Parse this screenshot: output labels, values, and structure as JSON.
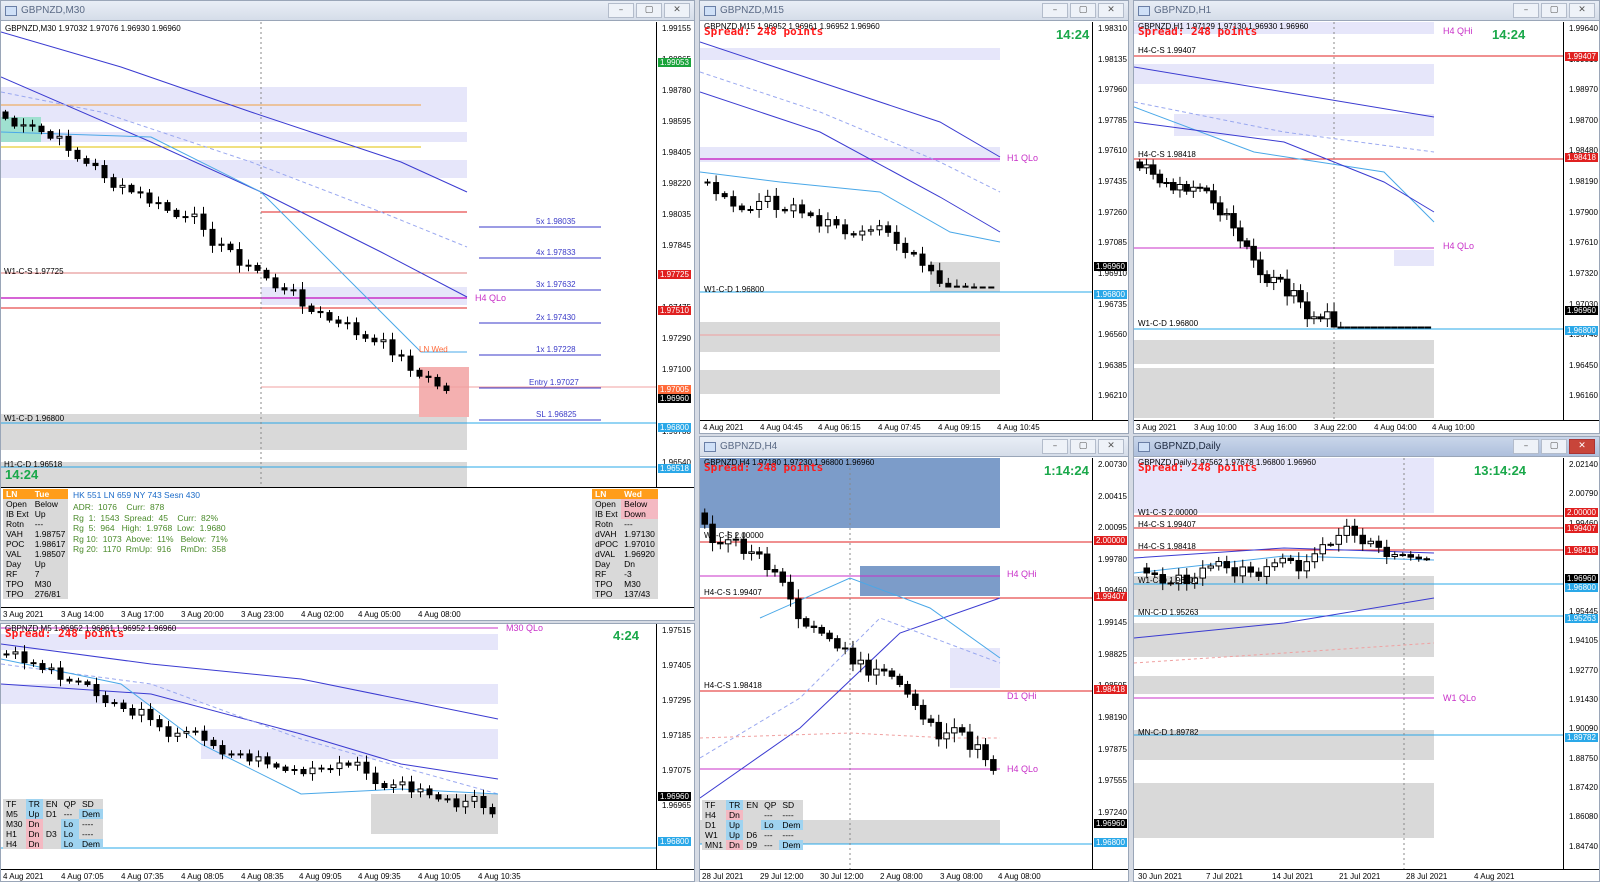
{
  "windows": {
    "m30": {
      "title": "GBPNZD,M30",
      "symbol_line": "GBPNZD,M30  1.97032 1.97076 1.96930 1.96960",
      "timer": "14:24",
      "price_labels": [
        "1.99155",
        "1.98965",
        "1.98780",
        "1.98595",
        "1.98405",
        "1.98220",
        "1.98035",
        "1.97845",
        "1.97660",
        "1.97475",
        "1.97290",
        "1.97100",
        "1.96915",
        "1.96730",
        "1.96540"
      ],
      "price_tags": [
        {
          "text": "1.99053",
          "color": "#19a33a"
        },
        {
          "text": "1.97725",
          "color": "#e02020"
        },
        {
          "text": "1.97510",
          "color": "#e02020"
        },
        {
          "text": "1.97005",
          "color": "#ff6a3a"
        },
        {
          "text": "1.96960",
          "color": "#000000"
        },
        {
          "text": "1.96800",
          "color": "#2aa8e8"
        },
        {
          "text": "1.96518",
          "color": "#2aa8e8"
        }
      ],
      "time_labels": [
        "3 Aug 2021",
        "3 Aug 14:00",
        "3 Aug 17:00",
        "3 Aug 20:00",
        "3 Aug 23:00",
        "4 Aug 02:00",
        "4 Aug 05:00",
        "4 Aug 08:00"
      ],
      "levels": {
        "w1cs": "W1-C-S 1.97725",
        "w1cd": "W1-C-D 1.96800",
        "h1cd": "H1-C-D 1.96518",
        "h4qlo": "H4 QLo",
        "lnwed": "LN Wed"
      },
      "targets": [
        "5x  1.98035",
        "4x  1.97833",
        "3x  1.97632",
        "2x  1.97430",
        "1x  1.97228",
        "Entry  1.97027",
        "SL  1.96825"
      ],
      "info": {
        "ln_label": "LN",
        "ln_day": "Tue",
        "rows": [
          [
            "Open",
            "Below"
          ],
          [
            "IB Ext",
            "Up"
          ],
          [
            "Rotn",
            "---"
          ],
          [
            "VAH",
            "1.98757"
          ],
          [
            "POC",
            "1.98617"
          ],
          [
            "VAL",
            "1.98507"
          ],
          [
            "Day",
            "Up"
          ],
          [
            "RF",
            "7"
          ],
          [
            "TPO",
            "M30"
          ],
          [
            "TPO",
            "276/81"
          ]
        ],
        "mid_line1": "HK 551  LN 659  NY 743  Sesn 430",
        "mid_rows": [
          "ADR:  1076    Curr:  878",
          "Rg  1:  1543  Spread:  45    Curr:  82%",
          "Rg  5:  964   High:  1.9768  Low:  1.9680",
          "Rg 10:  1073  Above:  11%   Below:  71%",
          "Rg 20:  1170  RmUp:  916    RmDn:  358"
        ],
        "right_label": "LN",
        "right_day": "Wed",
        "right_rows": [
          [
            "Open",
            "Below"
          ],
          [
            "IB Ext",
            "Down"
          ],
          [
            "Rotn",
            "---"
          ],
          [
            "dVAH",
            "1.97130"
          ],
          [
            "dPOC",
            "1.97010"
          ],
          [
            "dVAL",
            "1.96920"
          ],
          [
            "Day",
            "Dn"
          ],
          [
            "RF",
            "-3"
          ],
          [
            "TPO",
            "M30"
          ],
          [
            "TPO",
            "137/43"
          ]
        ]
      }
    },
    "m15": {
      "title": "GBPNZD,M15",
      "symbol_line": "GBPNZD,M15  1.96952 1.96961 1.96952 1.96960",
      "spread": "Spread: 248 points",
      "timer": "14:24",
      "price_labels": [
        "1.98310",
        "1.98135",
        "1.97960",
        "1.97785",
        "1.97610",
        "1.97435",
        "1.97260",
        "1.97085",
        "1.96910",
        "1.96735",
        "1.96560",
        "1.96385",
        "1.96210"
      ],
      "price_tags": [
        {
          "text": "1.96960",
          "color": "#000000"
        },
        {
          "text": "1.96800",
          "color": "#2aa8e8"
        }
      ],
      "time_labels": [
        "4 Aug 2021",
        "4 Aug 04:45",
        "4 Aug 06:15",
        "4 Aug 07:45",
        "4 Aug 09:15",
        "4 Aug 10:45"
      ],
      "levels": {
        "h1qlo": "H1 QLo",
        "w1cd": "W1-C-D 1.96800"
      }
    },
    "h1": {
      "title": "GBPNZD,H1",
      "symbol_line": "GBPNZD,H1  1.97129 1.97130 1.96930 1.96960",
      "spread": "Spread: 248 points",
      "timer": "14:24",
      "price_labels": [
        "1.99640",
        "1.99310",
        "1.98970",
        "1.98700",
        "1.98480",
        "1.98190",
        "1.97900",
        "1.97610",
        "1.97320",
        "1.97030",
        "1.96740",
        "1.96450",
        "1.96160"
      ],
      "price_tags": [
        {
          "text": "1.99407",
          "color": "#e02020"
        },
        {
          "text": "1.98418",
          "color": "#e02020"
        },
        {
          "text": "1.96960",
          "color": "#000000"
        },
        {
          "text": "1.96800",
          "color": "#2aa8e8"
        }
      ],
      "time_labels": [
        "3 Aug 2021",
        "3 Aug 10:00",
        "3 Aug 16:00",
        "3 Aug 22:00",
        "4 Aug 04:00",
        "4 Aug 10:00"
      ],
      "levels": {
        "h4qhi": "H4 QHi",
        "h4cs": "H4-C-S 1.99407",
        "h4cs2": "H4-C-S 1.98418",
        "h4qlo": "H4 QLo",
        "w1cd": "W1-C-D 1.96800"
      }
    },
    "m5": {
      "symbol_line": "GBPNZD,M5  1.96952 1.96961 1.96952 1.96960",
      "spread": "Spread: 248 points",
      "timer": "4:24",
      "m30qlo": "M30 QLo",
      "price_labels": [
        "1.97515",
        "1.97405",
        "1.97295",
        "1.97185",
        "1.97075",
        "1.96965",
        "1.96855"
      ],
      "price_tags": [
        {
          "text": "1.96960",
          "color": "#000000"
        },
        {
          "text": "1.96800",
          "color": "#2aa8e8"
        }
      ],
      "time_labels": [
        "4 Aug 2021",
        "4 Aug 07:05",
        "4 Aug 07:35",
        "4 Aug 08:05",
        "4 Aug 08:35",
        "4 Aug 09:05",
        "4 Aug 09:35",
        "4 Aug 10:05",
        "4 Aug 10:35"
      ],
      "tf_table": {
        "headers": [
          "TF",
          "TR",
          "EN",
          "QP",
          "SD"
        ],
        "rows": [
          [
            "M5",
            "Up",
            "D1",
            "---",
            "Dem"
          ],
          [
            "M30",
            "Dn",
            "",
            "Lo",
            "----"
          ],
          [
            "H1",
            "Dn",
            "D3",
            "Lo",
            "----"
          ],
          [
            "H4",
            "Dn",
            "",
            "Lo",
            "Dem"
          ]
        ]
      }
    },
    "h4": {
      "title": "GBPNZD,H4",
      "symbol_line": "GBPNZD,H4  1.97180 1.97230 1.96800 1.96960",
      "spread": "Spread: 248 points",
      "timer": "1:14:24",
      "price_labels": [
        "2.00730",
        "2.00415",
        "2.00095",
        "1.99780",
        "1.99460",
        "1.99145",
        "1.98825",
        "1.98505",
        "1.98190",
        "1.97875",
        "1.97555",
        "1.97240",
        "1.96920"
      ],
      "price_tags": [
        {
          "text": "2.00000",
          "color": "#e02020"
        },
        {
          "text": "1.99407",
          "color": "#e02020"
        },
        {
          "text": "1.98418",
          "color": "#e02020"
        },
        {
          "text": "1.96960",
          "color": "#000000"
        },
        {
          "text": "1.96800",
          "color": "#2aa8e8"
        }
      ],
      "time_labels": [
        "28 Jul 2021",
        "29 Jul 12:00",
        "30 Jul 12:00",
        "2 Aug 08:00",
        "3 Aug 08:00",
        "4 Aug 08:00"
      ],
      "levels": {
        "w1cs": "W1-C-S 2.00000",
        "h4cs": "H4-C-S 1.99407",
        "h4cs2": "H4-C-S 1.98418",
        "h4qhi": "H4 QHi",
        "d1qhi": "D1 QHi",
        "h4qlo": "H4 QLo"
      },
      "tf_table": {
        "headers": [
          "TF",
          "TR",
          "EN",
          "QP",
          "SD"
        ],
        "rows": [
          [
            "H4",
            "Dn",
            "",
            "---",
            "----"
          ],
          [
            "D1",
            "Up",
            "",
            "Lo",
            "Dem"
          ],
          [
            "W1",
            "Up",
            "D6",
            "---",
            "----"
          ],
          [
            "MN1",
            "Dn",
            "D9",
            "---",
            "Dem"
          ]
        ]
      }
    },
    "daily": {
      "title": "GBPNZD,Daily",
      "symbol_line": "GBPNZD,Daily  1.97562 1.97678 1.96800 1.96960",
      "spread": "Spread: 248 points",
      "timer": "13:14:24",
      "price_labels": [
        "2.02140",
        "2.00790",
        "1.99460",
        "1.98120",
        "1.96780",
        "1.95445",
        "1.94105",
        "1.92770",
        "1.91430",
        "1.90090",
        "1.88750",
        "1.87420",
        "1.86080",
        "1.84740"
      ],
      "price_tags": [
        {
          "text": "2.00000",
          "color": "#e02020"
        },
        {
          "text": "1.99407",
          "color": "#e02020"
        },
        {
          "text": "1.98418",
          "color": "#e02020"
        },
        {
          "text": "1.96960",
          "color": "#000000"
        },
        {
          "text": "1.96800",
          "color": "#2aa8e8"
        },
        {
          "text": "1.95263",
          "color": "#2aa8e8"
        },
        {
          "text": "1.89782",
          "color": "#2aa8e8"
        }
      ],
      "time_labels": [
        "30 Jun 2021",
        "7 Jul 2021",
        "14 Jul 2021",
        "21 Jul 2021",
        "28 Jul 2021",
        "4 Aug 2021"
      ],
      "levels": {
        "w1cs": "W1-C-S 2.00000",
        "h4cs": "H4-C-S 1.99407",
        "h4cs2": "H4-C-S 1.98418",
        "w1cd": "W1-C-D 1.96800",
        "mncd": "MN-C-D 1.95263",
        "w1qlo": "W1 QLo",
        "mncd2": "MN-C-D 1.89782"
      }
    }
  },
  "window_buttons": {
    "min": "–",
    "max": "▢",
    "close": "✕"
  },
  "colors": {
    "up_candle": "#ffffff",
    "down_candle": "#000000",
    "zone_lavender": "#e6e6fa",
    "zone_gray": "#d9d9d9",
    "zone_blue": "#7c9cc9",
    "pink": "#c830c8",
    "red": "#e02020",
    "cyan": "#2aa8e8",
    "navy": "#3b3bd1"
  }
}
